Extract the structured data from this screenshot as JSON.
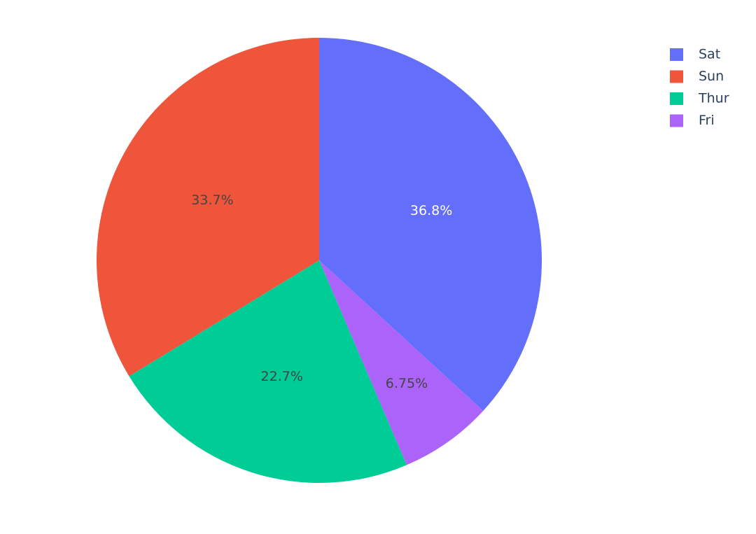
{
  "chart_data": {
    "type": "pie",
    "categories": [
      "Sat",
      "Sun",
      "Thur",
      "Fri"
    ],
    "values": [
      36.8,
      33.7,
      22.7,
      6.75
    ],
    "value_labels": [
      "36.8%",
      "33.7%",
      "22.7%",
      "6.75%"
    ],
    "colors": [
      "#636efa",
      "#ef553b",
      "#00cc96",
      "#ab63fa"
    ],
    "label_colors": [
      "#ffffff",
      "#444444",
      "#444444",
      "#444444"
    ],
    "direction": "counterclockwise",
    "legend": "top-right"
  }
}
